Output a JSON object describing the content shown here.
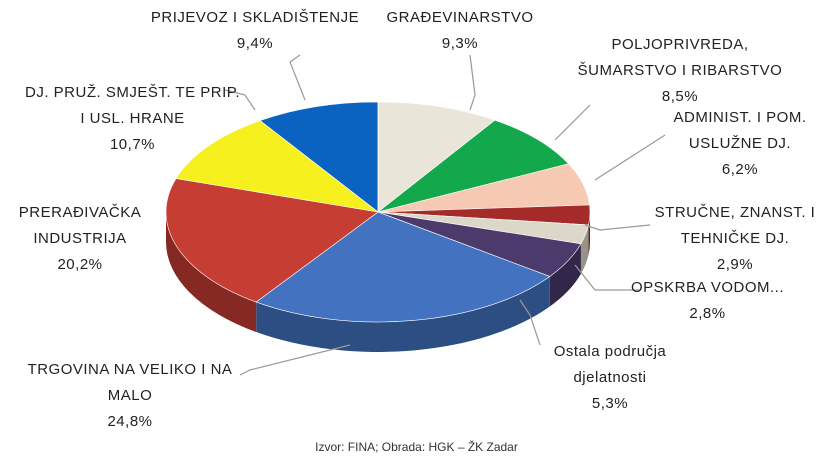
{
  "chart_data": {
    "type": "pie",
    "categories": [
      "PRIJEVOZ I SKLADIŠTENJE",
      "GRAĐEVINARSTVO",
      "POLJOPRIVREDA, ŠUMARSTVO I RIBARSTVO",
      "ADMINIST. I POM. USLUŽNE DJ.",
      "STRUČNE, ZNANST. I TEHNIČKE DJ.",
      "OPSKRBA VODOM...",
      "Ostala područja djelatnosti",
      "TRGOVINA NA VELIKO I NA MALO",
      "PRERAĐIVAČKA INDUSTRIJA",
      "DJ. PRUŽ. SMJEŠT. TE PRIP. I USL. HRANE"
    ],
    "values": [
      9.4,
      9.3,
      8.5,
      6.2,
      2.9,
      2.8,
      5.3,
      24.8,
      20.2,
      10.7
    ],
    "value_labels": [
      "9,4%",
      "9,3%",
      "8,5%",
      "6,2%",
      "2,9%",
      "2,8%",
      "5,3%",
      "24,8%",
      "20,2%",
      "10,7%"
    ],
    "colors": [
      "#0b63c1",
      "#e9e5d9",
      "#12a84b",
      "#f5c9b2",
      "#a52a2a",
      "#dcd8c9",
      "#4b3a6b",
      "#4272c0",
      "#c63d33",
      "#f6f01f"
    ],
    "source": "Izvor: FINA; Obrada: HGK – ŽK Zadar"
  }
}
